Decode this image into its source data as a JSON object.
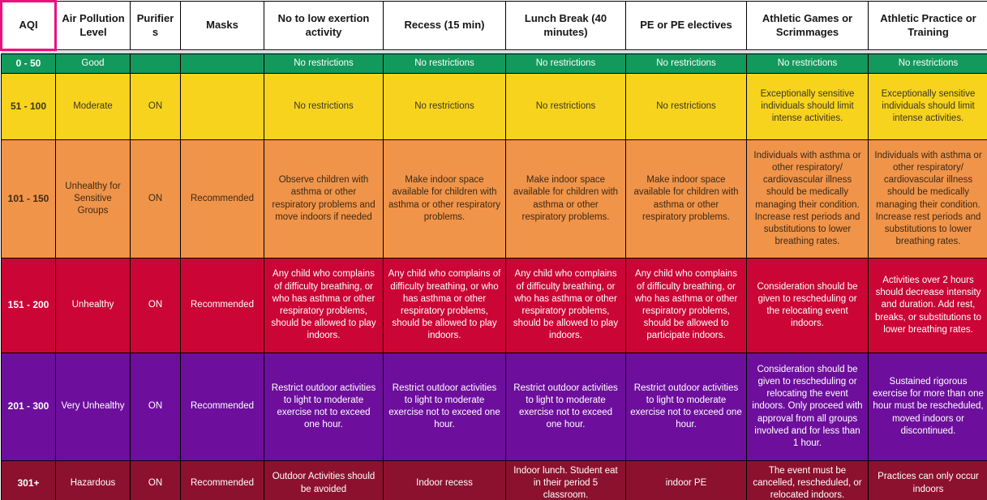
{
  "table": {
    "title": "AQI activity guidance table",
    "selected_column_index": 0,
    "selection_border_color": "#EC107C",
    "header_gap_color": "#D8D8DE",
    "grid_border_color": "#000000",
    "column_keys": [
      "aqi",
      "air-pollution-level",
      "purifiers",
      "masks",
      "no-low-exertion",
      "recess",
      "lunch-break",
      "pe",
      "athletic-games",
      "athletic-practice"
    ],
    "header": [
      "AQI",
      "Air Pollution Level",
      "Purifiers",
      "Masks",
      "No to low exertion activity",
      "Recess (15 min)",
      "Lunch Break (40 minutes)",
      "PE or PE electives",
      "Athletic Games or Scrimmages",
      "Athletic Practice or Training"
    ],
    "rows": [
      {
        "id": "good",
        "bg": "#12995C",
        "fg": "#FFFFFF",
        "cells": [
          "0 - 50",
          "Good",
          "",
          "",
          "No restrictions",
          "No restrictions",
          "No restrictions",
          "No restrictions",
          "No restrictions",
          "No restrictions"
        ]
      },
      {
        "id": "moderate",
        "bg": "#F7D31E",
        "fg": "#3B3623",
        "cells": [
          "51 - 100",
          "Moderate",
          "ON",
          "",
          "No restrictions",
          "No restrictions",
          "No restrictions",
          "No restrictions",
          "Exceptionally sensitive individuals should limit intense activities.",
          "Exceptionally sensitive individuals should limit intense activities."
        ]
      },
      {
        "id": "unhealthy-sensitive-groups",
        "bg": "#F0944A",
        "fg": "#3D2A14",
        "cells": [
          "101 - 150",
          "Unhealthy for Sensitive Groups",
          "ON",
          "Recommended",
          "Observe children with asthma or other respiratory problems and move indoors if needed",
          "Make indoor space available for children with asthma or other respiratory problems.",
          "Make indoor space available for children with asthma or other respiratory problems.",
          "Make indoor space available for children with asthma or other respiratory problems.",
          "Individuals with asthma or other respiratory/ cardiovascular illness should be medically managing their condition. Increase rest periods and substitutions to lower breathing rates.",
          "Individuals with asthma or other respiratory/ cardiovascular illness should be medically managing their condition. Increase rest periods and substitutions to lower breathing rates."
        ]
      },
      {
        "id": "unhealthy",
        "bg": "#CB0535",
        "fg": "#FFFFFF",
        "cells": [
          "151 - 200",
          "Unhealthy",
          "ON",
          "Recommended",
          "Any child who complains of difficulty breathing, or who has asthma or other respiratory problems, should be allowed to play indoors.",
          "Any child who complains of difficulty breathing, or who has asthma or other respiratory problems, should be allowed to play indoors.",
          "Any child who complains of difficulty breathing, or who has asthma or other respiratory problems, should be allowed to play indoors.",
          "Any child who complains of difficulty breathing, or who has asthma or other respiratory problems, should be allowed to participate indoors.",
          "Consideration should be given to rescheduling or the relocating event indoors.",
          "Activities over 2 hours should decrease intensity and duration. Add rest, breaks, or substitutions to lower breathing rates."
        ]
      },
      {
        "id": "very-unhealthy",
        "bg": "#6D0F9C",
        "fg": "#FFFFFF",
        "cells": [
          "201 - 300",
          "Very Unhealthy",
          "ON",
          "Recommended",
          "Restrict outdoor activities to light to moderate exercise not to exceed one hour.",
          "Restrict outdoor activities to light to moderate exercise not to exceed one hour.",
          "Restrict outdoor activities to light to moderate exercise not to exceed one hour.",
          "Restrict outdoor activities to light to moderate exercise not to exceed one hour.",
          "Consideration should be given to rescheduling or relocating the event indoors. Only proceed with approval from all groups involved and for less than 1 hour.",
          "Sustained rigorous exercise for more than one hour must be rescheduled, moved indoors or discontinued."
        ]
      },
      {
        "id": "hazardous",
        "bg": "#8C112E",
        "fg": "#FFFFFF",
        "cells": [
          "301+",
          "Hazardous",
          "ON",
          "Recommended",
          "Outdoor Activities should be avoided",
          "Indoor recess",
          "Indoor lunch. Student eat in their period 5 classroom.",
          "indoor PE",
          "The event must be cancelled, rescheduled, or relocated indoors.",
          "Practices can only occur indoors"
        ]
      }
    ]
  }
}
